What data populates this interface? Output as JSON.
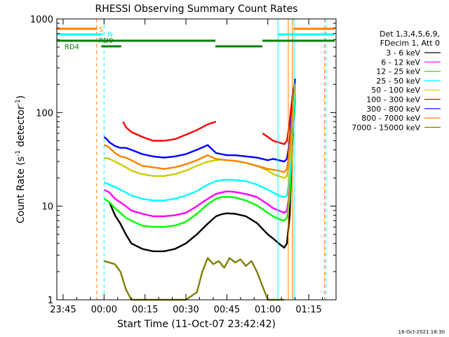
{
  "chart_data": {
    "type": "line",
    "title": "RHESSI Observing Summary Count Rates",
    "xlabel": "Start Time (11-Oct-07 23:42:42)",
    "ylabel_main": "Count Rate (s",
    "ylabel_sup1": "-1",
    "ylabel_mid": " detector",
    "ylabel_sup2": "-1",
    "ylabel_end": ")",
    "y_scale": "log",
    "ylim": [
      1,
      1000
    ],
    "xlim_minutes": [
      -17.3,
      85
    ],
    "x_ticks": [
      {
        "m": -15,
        "label": "23:45"
      },
      {
        "m": 0,
        "label": "00:00"
      },
      {
        "m": 15,
        "label": "00:15"
      },
      {
        "m": 30,
        "label": "00:30"
      },
      {
        "m": 45,
        "label": "00:45"
      },
      {
        "m": 60,
        "label": "01:00"
      },
      {
        "m": 75,
        "label": "01:15"
      }
    ],
    "y_ticks": [
      {
        "v": 1,
        "label": "1"
      },
      {
        "v": 10,
        "label": "10"
      },
      {
        "v": 100,
        "label": "100"
      },
      {
        "v": 1000,
        "label": "1000"
      }
    ],
    "legend_position": "top-right",
    "legend_header": [
      "Det 1,3,4,5,6,9,",
      "FDecim 1, Att 0"
    ],
    "series": [
      {
        "name": "3 - 6 keV",
        "color": "#000000",
        "x": [
          -2,
          -1,
          0,
          2,
          4,
          6,
          8,
          10,
          14,
          18,
          22,
          26,
          30,
          34,
          38,
          41,
          43,
          45,
          48,
          52,
          56,
          60,
          62,
          64,
          66,
          67,
          68,
          69,
          70
        ],
        "y": [
          null,
          null,
          null,
          11,
          8,
          6.5,
          5,
          4,
          3.5,
          3.3,
          3.3,
          3.5,
          4,
          5,
          6.5,
          7.8,
          8.2,
          8.4,
          8.3,
          7.8,
          6.6,
          5,
          4.5,
          4,
          3.6,
          4,
          8,
          50,
          140
        ]
      },
      {
        "name": "6 - 12 keV",
        "color": "#ff00ff",
        "x": [
          0,
          2,
          4,
          6,
          8,
          10,
          14,
          18,
          22,
          26,
          30,
          34,
          38,
          41,
          43,
          45,
          48,
          52,
          56,
          60,
          62,
          64,
          66,
          67,
          68,
          69,
          70
        ],
        "y": [
          15,
          14,
          12,
          11,
          10,
          9,
          8.3,
          7.8,
          7.8,
          8,
          8.5,
          10,
          12,
          13.5,
          14,
          14.4,
          14.2,
          13.5,
          12.5,
          10.5,
          9.5,
          9,
          8.5,
          9,
          14,
          60,
          160
        ]
      },
      {
        "name": "12 - 25 keV",
        "color": "#00ff00",
        "x": [
          0,
          2,
          4,
          6,
          8,
          10,
          14,
          18,
          22,
          26,
          30,
          34,
          38,
          41,
          43,
          45,
          48,
          52,
          56,
          60,
          62,
          64,
          66,
          67,
          68,
          69,
          70
        ],
        "y": [
          12,
          11,
          9.5,
          8.5,
          7.5,
          7,
          6.2,
          6,
          6,
          6.2,
          6.8,
          8.3,
          10.5,
          12,
          12.5,
          12.6,
          12.4,
          11.5,
          10.2,
          8.5,
          7.8,
          7.3,
          7,
          7.5,
          12,
          55,
          150
        ]
      },
      {
        "name": "25 - 50 keV",
        "color": "#00ffff",
        "x": [
          0,
          2,
          4,
          6,
          8,
          10,
          14,
          18,
          22,
          26,
          30,
          34,
          38,
          41,
          43,
          45,
          48,
          52,
          56,
          60,
          62,
          64,
          66,
          67,
          68,
          69,
          70
        ],
        "y": [
          18,
          17,
          16,
          15,
          14,
          13,
          12,
          11.5,
          11.5,
          12,
          13,
          14.5,
          17,
          18.5,
          19,
          19.2,
          19,
          18.5,
          17,
          15,
          14,
          13,
          12.5,
          13,
          20,
          70,
          180
        ]
      },
      {
        "name": "50 - 100 keV",
        "color": "#cccc00",
        "x": [
          0,
          2,
          4,
          6,
          8,
          10,
          14,
          18,
          22,
          26,
          30,
          34,
          38,
          41,
          43,
          45,
          48,
          52,
          56,
          60,
          62,
          64,
          66,
          67,
          68,
          69,
          70
        ],
        "y": [
          33,
          32,
          30,
          28,
          26,
          24,
          22,
          21,
          21,
          22,
          24,
          27,
          30,
          31,
          31.5,
          31,
          30.5,
          29,
          27,
          24,
          22,
          21,
          20,
          21,
          30,
          90,
          200
        ]
      },
      {
        "name": "100 - 300 keV",
        "color": "#ff0000",
        "x": [
          0,
          2,
          4,
          6,
          7,
          8,
          10,
          14,
          18,
          22,
          26,
          30,
          34,
          38,
          41,
          41.1,
          43,
          45,
          48,
          52,
          56,
          58,
          58.1,
          60,
          62,
          64,
          66,
          67,
          68,
          69,
          70
        ],
        "y": [
          null,
          null,
          null,
          null,
          80,
          70,
          62,
          55,
          50,
          50,
          52,
          58,
          65,
          75,
          80,
          null,
          null,
          null,
          null,
          null,
          null,
          null,
          60,
          55,
          50,
          48,
          46,
          50,
          80,
          150,
          220
        ]
      },
      {
        "name": "300 - 800 keV",
        "color": "#0000ff",
        "x": [
          0,
          1,
          2,
          4,
          6,
          8,
          10,
          14,
          18,
          22,
          26,
          30,
          34,
          38,
          41,
          43,
          45,
          48,
          52,
          56,
          58,
          60,
          62,
          64,
          66,
          67,
          68,
          69,
          70
        ],
        "y": [
          55,
          52,
          48,
          44,
          42,
          42,
          40,
          36,
          34,
          33,
          34,
          36,
          40,
          45,
          37,
          36,
          35,
          35,
          34,
          33,
          32,
          31,
          32,
          31,
          30,
          32,
          50,
          120,
          230
        ]
      },
      {
        "name": "800 - 7000 keV",
        "color": "#ff8000",
        "x": [
          0,
          1,
          2,
          4,
          6,
          8,
          10,
          14,
          18,
          22,
          26,
          30,
          34,
          38,
          41,
          43,
          45,
          48,
          52,
          56,
          58,
          60,
          62,
          64,
          66,
          67,
          68,
          69,
          70
        ],
        "y": [
          45,
          44,
          42,
          37,
          34,
          33,
          31,
          27,
          26,
          25,
          26,
          28,
          31,
          35,
          32,
          31.5,
          31,
          30.5,
          29,
          27,
          26,
          25,
          24.5,
          24,
          23,
          25,
          40,
          100,
          200
        ]
      },
      {
        "name": "7000 - 15000 keV",
        "color": "#808000",
        "x": [
          0,
          4,
          6,
          8,
          10,
          14,
          18,
          22,
          26,
          30,
          34,
          36,
          38,
          40,
          42,
          44,
          46,
          48,
          50,
          52,
          54,
          56,
          60,
          64,
          66,
          68,
          70
        ],
        "y": [
          2.6,
          2.4,
          2.0,
          1.3,
          1.0,
          1.0,
          1.0,
          1.0,
          1.0,
          1.0,
          1.2,
          2.0,
          2.8,
          2.4,
          2.6,
          2.2,
          2.8,
          2.5,
          2.7,
          2.3,
          2.6,
          2.0,
          1.0,
          1.0,
          1.0,
          null,
          null
        ]
      }
    ],
    "markers": {
      "top_label_S": "S",
      "top_label_N": "N",
      "label_RD0": "RD0",
      "label_RD4": "RD4"
    },
    "timestamp": "16-Oct-2021 18:30"
  }
}
